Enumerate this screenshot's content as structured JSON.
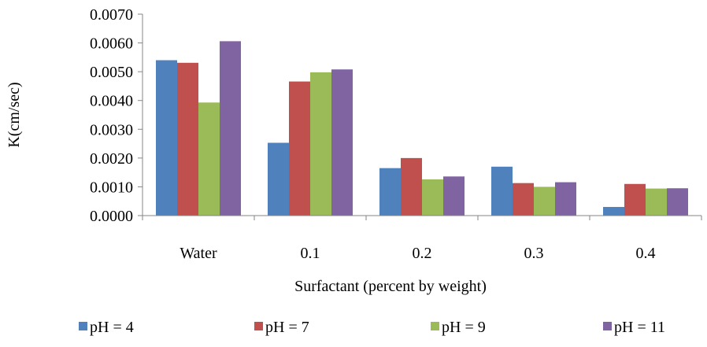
{
  "chart_data": {
    "type": "bar",
    "title": "",
    "xlabel": "Surfactant (percent by weight)",
    "ylabel": "K(cm/sec)",
    "categories": [
      "Water",
      "0.1",
      "0.2",
      "0.3",
      "0.4"
    ],
    "ylim": [
      0,
      0.007
    ],
    "yticks": [
      "0.0000",
      "0.0010",
      "0.0020",
      "0.0030",
      "0.0040",
      "0.0050",
      "0.0060",
      "0.0070"
    ],
    "grid": false,
    "legend_position": "bottom",
    "series": [
      {
        "name": "pH = 4",
        "color": "#4F81BD",
        "values": [
          0.0054,
          0.00253,
          0.00165,
          0.0017,
          0.0003
        ]
      },
      {
        "name": "pH = 7",
        "color": "#C0504D",
        "values": [
          0.00531,
          0.00466,
          0.002,
          0.00113,
          0.0011
        ]
      },
      {
        "name": "pH = 9",
        "color": "#9BBB59",
        "values": [
          0.00393,
          0.00498,
          0.00126,
          0.001,
          0.00094
        ]
      },
      {
        "name": "pH = 11",
        "color": "#8064A2",
        "values": [
          0.00606,
          0.00508,
          0.00136,
          0.00116,
          0.00095
        ]
      }
    ]
  }
}
